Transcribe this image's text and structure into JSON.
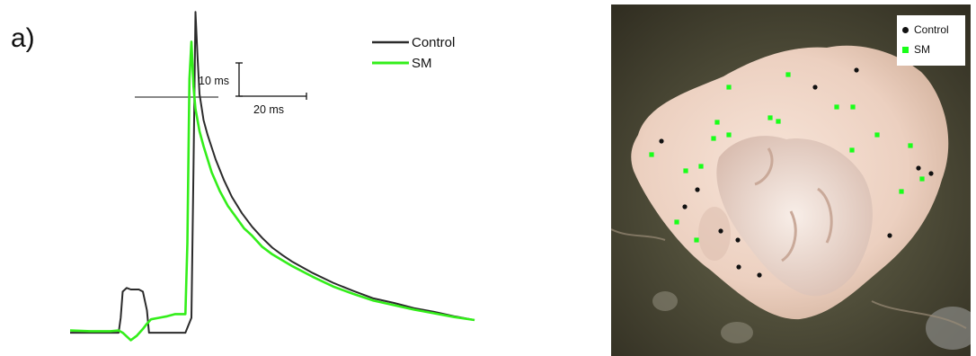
{
  "panel_label": "a)",
  "colors": {
    "control": "#2b2b2b",
    "sm": "#33ee1a",
    "photo_square": "#19ff19",
    "photo_dot": "#111111"
  },
  "chart_data": [
    {
      "type": "line",
      "title": "",
      "xlabel": "",
      "ylabel": "",
      "legend": {
        "placement": "top-right",
        "entries": [
          "Control",
          "SM"
        ]
      },
      "scale_bars": {
        "vertical": "10 ms",
        "horizontal": "20 ms"
      },
      "series": [
        {
          "name": "Control",
          "points": [
            [
              0,
              0.3
            ],
            [
              8,
              0.3
            ],
            [
              24,
              0.3
            ],
            [
              25,
              0.5
            ],
            [
              26,
              0.85
            ],
            [
              28,
              0.9
            ],
            [
              30,
              0.88
            ],
            [
              34,
              0.88
            ],
            [
              36,
              0.85
            ],
            [
              38,
              0.6
            ],
            [
              39,
              0.3
            ],
            [
              48,
              0.3
            ],
            [
              57,
              0.3
            ],
            [
              60,
              0.5
            ],
            [
              61,
              2.5
            ],
            [
              62,
              4.6
            ],
            [
              63,
              4.0
            ],
            [
              64,
              3.5
            ],
            [
              66,
              3.15
            ],
            [
              68,
              2.95
            ],
            [
              72,
              2.62
            ],
            [
              76,
              2.35
            ],
            [
              80,
              2.12
            ],
            [
              85,
              1.9
            ],
            [
              90,
              1.72
            ],
            [
              95,
              1.57
            ],
            [
              100,
              1.44
            ],
            [
              105,
              1.34
            ],
            [
              110,
              1.25
            ],
            [
              120,
              1.1
            ],
            [
              130,
              0.97
            ],
            [
              140,
              0.86
            ],
            [
              150,
              0.76
            ],
            [
              160,
              0.7
            ],
            [
              170,
              0.63
            ],
            [
              180,
              0.58
            ],
            [
              190,
              0.52
            ],
            [
              200,
              0.47
            ]
          ]
        },
        {
          "name": "SM",
          "points": [
            [
              0,
              0.33
            ],
            [
              10,
              0.32
            ],
            [
              20,
              0.32
            ],
            [
              24,
              0.33
            ],
            [
              26,
              0.3
            ],
            [
              30,
              0.2
            ],
            [
              33,
              0.26
            ],
            [
              36,
              0.35
            ],
            [
              38,
              0.42
            ],
            [
              40,
              0.48
            ],
            [
              44,
              0.5
            ],
            [
              48,
              0.52
            ],
            [
              52,
              0.55
            ],
            [
              55,
              0.55
            ],
            [
              57,
              0.55
            ],
            [
              58,
              1.5
            ],
            [
              59,
              3.7
            ],
            [
              60,
              4.2
            ],
            [
              61,
              3.6
            ],
            [
              62,
              3.3
            ],
            [
              64,
              3.0
            ],
            [
              66,
              2.8
            ],
            [
              70,
              2.45
            ],
            [
              74,
              2.2
            ],
            [
              78,
              2.0
            ],
            [
              82,
              1.85
            ],
            [
              86,
              1.7
            ],
            [
              90,
              1.6
            ],
            [
              95,
              1.45
            ],
            [
              100,
              1.35
            ],
            [
              105,
              1.27
            ],
            [
              110,
              1.19
            ],
            [
              120,
              1.05
            ],
            [
              130,
              0.92
            ],
            [
              140,
              0.82
            ],
            [
              150,
              0.73
            ],
            [
              160,
              0.67
            ],
            [
              170,
              0.61
            ],
            [
              180,
              0.56
            ],
            [
              190,
              0.51
            ],
            [
              200,
              0.47
            ]
          ]
        }
      ]
    },
    {
      "type": "scatter",
      "title": "",
      "legend": {
        "placement": "top-right",
        "entries": [
          "Control",
          "SM"
        ]
      },
      "series": [
        {
          "name": "Control",
          "marker": "dot",
          "points": [
            [
              273,
              73
            ],
            [
              227,
              92
            ],
            [
              56,
              152
            ],
            [
              342,
              182
            ],
            [
              356,
              188
            ],
            [
              96,
              206
            ],
            [
              82,
              225
            ],
            [
              122,
              252
            ],
            [
              141,
              262
            ],
            [
              310,
              257
            ],
            [
              142,
              292
            ],
            [
              165,
              301
            ]
          ]
        },
        {
          "name": "SM",
          "marker": "square",
          "points": [
            [
              197,
              78
            ],
            [
              131,
              92
            ],
            [
              251,
              114
            ],
            [
              269,
              114
            ],
            [
              177,
              126
            ],
            [
              186,
              130
            ],
            [
              118,
              131
            ],
            [
              114,
              149
            ],
            [
              131,
              145
            ],
            [
              296,
              145
            ],
            [
              333,
              157
            ],
            [
              268,
              162
            ],
            [
              45,
              167
            ],
            [
              100,
              180
            ],
            [
              83,
              185
            ],
            [
              346,
              194
            ],
            [
              323,
              208
            ],
            [
              73,
              242
            ],
            [
              95,
              262
            ]
          ]
        }
      ]
    }
  ]
}
